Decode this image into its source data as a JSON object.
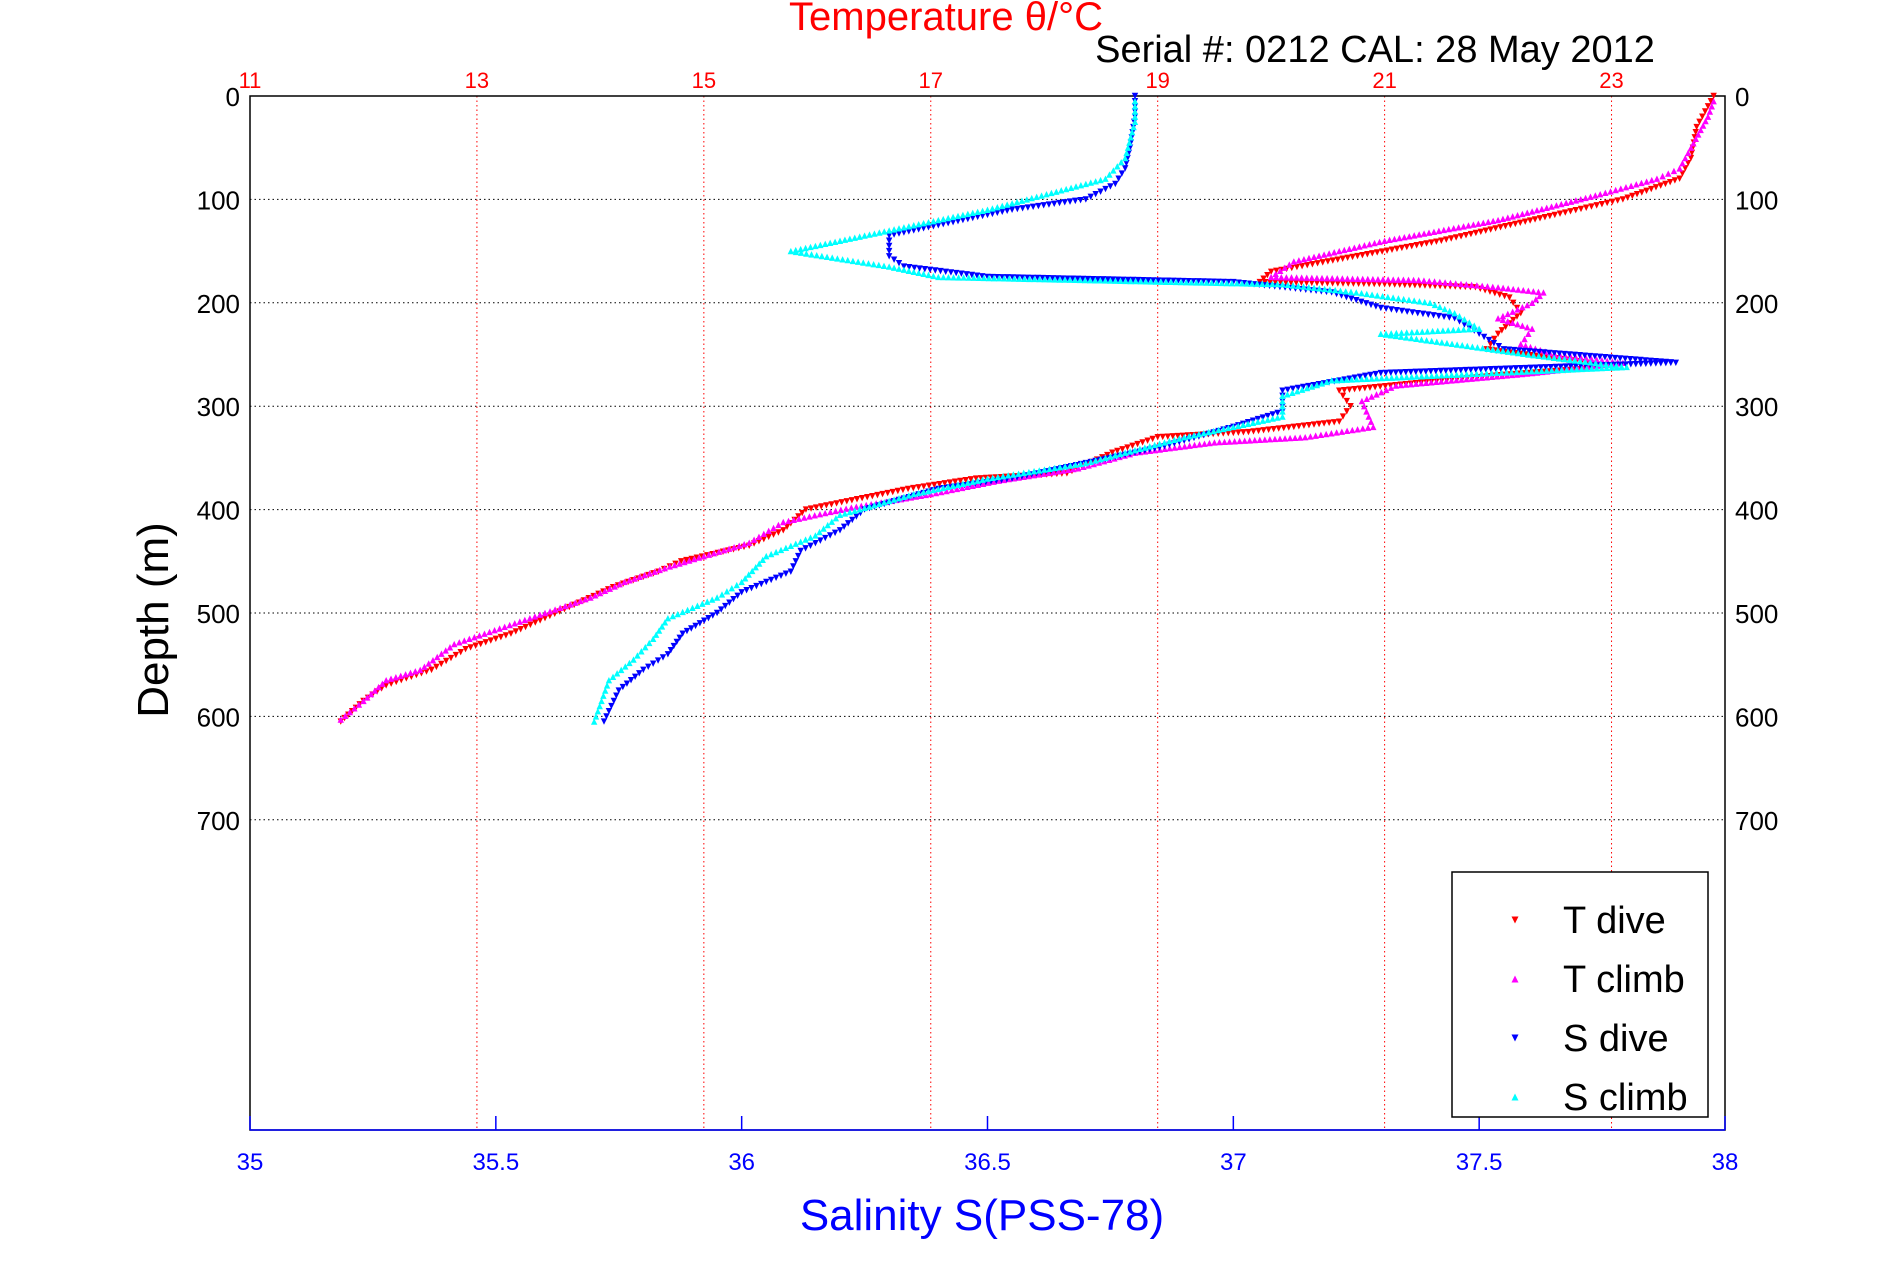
{
  "chart_data": {
    "type": "scatter",
    "title": "Temperature θ/°C",
    "subtitle": "Serial #: 0212  CAL: 28 May 2012",
    "xlabel": "Salinity S(PSS-78)",
    "ylabel": "Depth (m)",
    "x_bottom": {
      "label": "Salinity S(PSS-78)",
      "range": [
        35,
        38
      ],
      "ticks": [
        "35",
        "35.5",
        "36",
        "36.5",
        "37",
        "37.5",
        "38"
      ],
      "color": "#0000ff"
    },
    "x_top": {
      "label": "Temperature θ/°C",
      "range": [
        11,
        24
      ],
      "ticks": [
        "11",
        "13",
        "15",
        "17",
        "19",
        "21",
        "23"
      ],
      "color": "#ff0000"
    },
    "y": {
      "range": [
        0,
        1000
      ],
      "reversed": true,
      "ticks": [
        "0",
        "100",
        "200",
        "300",
        "400",
        "500",
        "600",
        "700"
      ],
      "tick_values": [
        0,
        100,
        200,
        300,
        400,
        500,
        600,
        700
      ]
    },
    "grid": true,
    "legend_position": "bottom-right",
    "series": [
      {
        "name": "T dive",
        "axis": "temperature",
        "color": "#ff0000",
        "marker": "triangle-down",
        "points": [
          [
            23.9,
            0
          ],
          [
            23.85,
            10
          ],
          [
            23.75,
            30
          ],
          [
            23.7,
            60
          ],
          [
            23.6,
            80
          ],
          [
            23.1,
            100
          ],
          [
            22.5,
            115
          ],
          [
            21.5,
            140
          ],
          [
            20.5,
            160
          ],
          [
            20.0,
            170
          ],
          [
            19.9,
            180
          ],
          [
            21.0,
            182
          ],
          [
            21.8,
            185
          ],
          [
            22.1,
            195
          ],
          [
            22.2,
            210
          ],
          [
            22.0,
            230
          ],
          [
            21.9,
            245
          ],
          [
            22.6,
            255
          ],
          [
            23.0,
            262
          ],
          [
            22.0,
            270
          ],
          [
            20.6,
            285
          ],
          [
            20.7,
            300
          ],
          [
            20.6,
            315
          ],
          [
            19.8,
            325
          ],
          [
            19.0,
            330
          ],
          [
            18.6,
            345
          ],
          [
            18.2,
            365
          ],
          [
            17.4,
            370
          ],
          [
            16.8,
            380
          ],
          [
            15.9,
            400
          ],
          [
            15.7,
            420
          ],
          [
            15.4,
            435
          ],
          [
            14.8,
            450
          ],
          [
            14.6,
            460
          ],
          [
            14.2,
            475
          ],
          [
            13.9,
            490
          ],
          [
            13.6,
            505
          ],
          [
            13.3,
            520
          ],
          [
            12.9,
            535
          ],
          [
            12.6,
            555
          ],
          [
            12.2,
            570
          ],
          [
            12.0,
            585
          ],
          [
            11.8,
            605
          ]
        ]
      },
      {
        "name": "T climb",
        "axis": "temperature",
        "color": "#ff00ff",
        "marker": "triangle-up",
        "points": [
          [
            23.9,
            5
          ],
          [
            23.85,
            20
          ],
          [
            23.7,
            50
          ],
          [
            23.6,
            70
          ],
          [
            23.4,
            80
          ],
          [
            22.9,
            95
          ],
          [
            22.0,
            120
          ],
          [
            21.0,
            140
          ],
          [
            20.2,
            160
          ],
          [
            20.0,
            175
          ],
          [
            21.3,
            178
          ],
          [
            22.0,
            185
          ],
          [
            22.4,
            190
          ],
          [
            22.3,
            200
          ],
          [
            22.0,
            215
          ],
          [
            22.3,
            225
          ],
          [
            22.2,
            240
          ],
          [
            22.5,
            250
          ],
          [
            23.1,
            258
          ],
          [
            22.3,
            268
          ],
          [
            21.1,
            280
          ],
          [
            20.8,
            295
          ],
          [
            20.9,
            320
          ],
          [
            20.3,
            330
          ],
          [
            19.5,
            335
          ],
          [
            18.8,
            345
          ],
          [
            18.3,
            360
          ],
          [
            17.6,
            372
          ],
          [
            17.0,
            385
          ],
          [
            16.3,
            398
          ],
          [
            15.7,
            412
          ],
          [
            15.4,
            432
          ],
          [
            15.0,
            445
          ],
          [
            14.7,
            455
          ],
          [
            14.3,
            470
          ],
          [
            14.0,
            485
          ],
          [
            13.6,
            500
          ],
          [
            13.2,
            515
          ],
          [
            12.8,
            530
          ],
          [
            12.5,
            555
          ],
          [
            12.2,
            565
          ],
          [
            12.0,
            585
          ],
          [
            11.8,
            603
          ]
        ]
      },
      {
        "name": "S dive",
        "axis": "salinity",
        "color": "#0000ff",
        "marker": "triangle-down",
        "points": [
          [
            36.8,
            0
          ],
          [
            36.8,
            20
          ],
          [
            36.79,
            50
          ],
          [
            36.78,
            70
          ],
          [
            36.76,
            85
          ],
          [
            36.7,
            100
          ],
          [
            36.55,
            110
          ],
          [
            36.4,
            125
          ],
          [
            36.3,
            135
          ],
          [
            36.3,
            155
          ],
          [
            36.33,
            165
          ],
          [
            36.5,
            175
          ],
          [
            37.0,
            180
          ],
          [
            37.2,
            190
          ],
          [
            37.3,
            205
          ],
          [
            37.45,
            215
          ],
          [
            37.5,
            230
          ],
          [
            37.55,
            245
          ],
          [
            37.9,
            258
          ],
          [
            37.3,
            268
          ],
          [
            37.1,
            285
          ],
          [
            37.1,
            305
          ],
          [
            37.0,
            320
          ],
          [
            36.85,
            340
          ],
          [
            36.7,
            355
          ],
          [
            36.55,
            370
          ],
          [
            36.4,
            380
          ],
          [
            36.25,
            400
          ],
          [
            36.2,
            420
          ],
          [
            36.12,
            440
          ],
          [
            36.1,
            460
          ],
          [
            36.0,
            480
          ],
          [
            35.95,
            500
          ],
          [
            35.88,
            520
          ],
          [
            35.85,
            540
          ],
          [
            35.8,
            555
          ],
          [
            35.75,
            575
          ],
          [
            35.72,
            605
          ]
        ]
      },
      {
        "name": "S climb",
        "axis": "salinity",
        "color": "#00ffff",
        "marker": "triangle-up",
        "points": [
          [
            36.8,
            5
          ],
          [
            36.8,
            25
          ],
          [
            36.78,
            60
          ],
          [
            36.74,
            80
          ],
          [
            36.62,
            95
          ],
          [
            36.5,
            110
          ],
          [
            36.3,
            130
          ],
          [
            36.1,
            150
          ],
          [
            36.3,
            165
          ],
          [
            36.4,
            175
          ],
          [
            37.1,
            182
          ],
          [
            37.25,
            190
          ],
          [
            37.4,
            200
          ],
          [
            37.45,
            210
          ],
          [
            37.5,
            225
          ],
          [
            37.3,
            230
          ],
          [
            37.6,
            250
          ],
          [
            37.8,
            262
          ],
          [
            37.2,
            275
          ],
          [
            37.1,
            290
          ],
          [
            37.1,
            310
          ],
          [
            36.9,
            330
          ],
          [
            36.7,
            355
          ],
          [
            36.5,
            370
          ],
          [
            36.35,
            385
          ],
          [
            36.2,
            405
          ],
          [
            36.15,
            425
          ],
          [
            36.05,
            445
          ],
          [
            36.0,
            470
          ],
          [
            35.95,
            485
          ],
          [
            35.85,
            505
          ],
          [
            35.82,
            525
          ],
          [
            35.78,
            545
          ],
          [
            35.73,
            565
          ],
          [
            35.7,
            605
          ]
        ]
      }
    ]
  }
}
